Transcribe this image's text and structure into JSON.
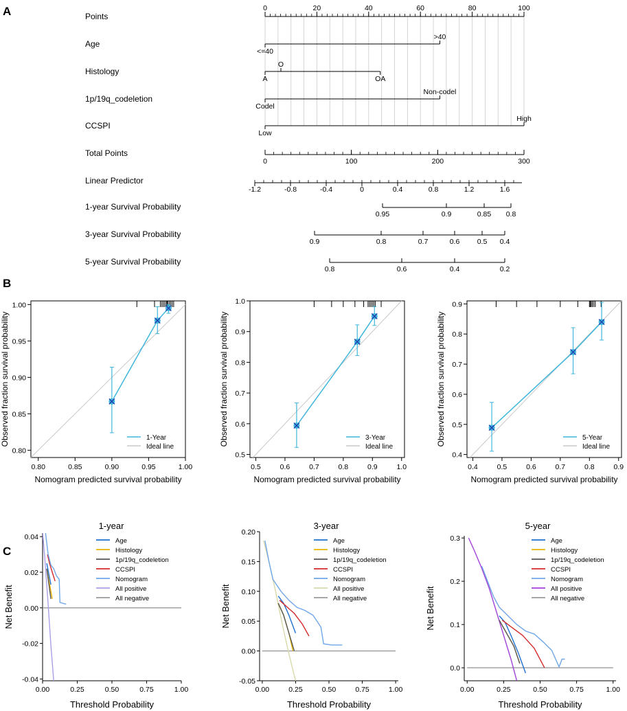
{
  "panels": {
    "a": "A",
    "b": "B",
    "c": "C"
  },
  "nomogram": {
    "rows": [
      {
        "label": "Points",
        "kind": "scale",
        "min": 0,
        "max": 100,
        "major": [
          0,
          20,
          40,
          60,
          80,
          100
        ]
      },
      {
        "label": "Age",
        "kind": "var",
        "from": 0,
        "to": 67.5,
        "levels": [
          {
            "text": "<=40",
            "at": 0,
            "pos": "below"
          },
          {
            "text": ">40",
            "at": 67.5,
            "pos": "above"
          }
        ]
      },
      {
        "label": "Histology",
        "kind": "var",
        "from": 0,
        "to": 44.5,
        "levels": [
          {
            "text": "A",
            "at": 0,
            "pos": "below"
          },
          {
            "text": "O",
            "at": 6.1,
            "pos": "above"
          },
          {
            "text": "OA",
            "at": 44.5,
            "pos": "below"
          }
        ]
      },
      {
        "label": "1p/19q_codeletion",
        "kind": "var",
        "from": 0,
        "to": 67.5,
        "levels": [
          {
            "text": "Codel",
            "at": 0,
            "pos": "below"
          },
          {
            "text": "Non-codel",
            "at": 67.5,
            "pos": "above"
          }
        ]
      },
      {
        "label": "CCSPI",
        "kind": "var",
        "from": 0,
        "to": 100,
        "levels": [
          {
            "text": "Low",
            "at": 0,
            "pos": "below"
          },
          {
            "text": "High",
            "at": 100,
            "pos": "above"
          }
        ]
      },
      {
        "label": "Total Points",
        "kind": "scale",
        "min": 0,
        "max": 300,
        "major": [
          0,
          100,
          200,
          300
        ]
      },
      {
        "label": "Linear Predictor",
        "kind": "lp",
        "ticks": [
          "-1.2",
          "-0.8",
          "-0.4",
          "0",
          "0.4",
          "0.8",
          "1.2",
          "1.6"
        ]
      },
      {
        "label": "1-year Survival Probability",
        "kind": "prob",
        "ticks": [
          "0.95",
          "0.9",
          "0.85",
          "0.8"
        ]
      },
      {
        "label": "3-year Survival Probability",
        "kind": "prob",
        "ticks": [
          "0.9",
          "0.8",
          "0.7",
          "0.6",
          "0.5",
          "0.4"
        ]
      },
      {
        "label": "5-year Survival Probability",
        "kind": "prob",
        "ticks": [
          "0.8",
          "0.6",
          "0.4",
          "0.2"
        ]
      }
    ]
  },
  "chart_data": [
    {
      "type": "line",
      "panel": "B1",
      "xlabel": "Nomogram predicted survival probability",
      "ylabel": "Observed fraction survival probability",
      "xlim": [
        0.79,
        1.0
      ],
      "ylim": [
        0.79,
        1.005
      ],
      "xticks": [
        "0.80",
        "0.85",
        "0.90",
        "0.95",
        "1.00"
      ],
      "yticks": [
        "0.80",
        "0.85",
        "0.90",
        "0.95",
        "1.00"
      ],
      "series": [
        {
          "name": "1-Year",
          "x": [
            0.9,
            0.962,
            0.977
          ],
          "y": [
            0.867,
            0.978,
            0.995
          ],
          "err_low": [
            0.824,
            0.96,
            0.988
          ],
          "err_high": [
            0.914,
            0.997,
            1.0
          ]
        }
      ],
      "rug": [
        0.934,
        0.958,
        0.966,
        0.968,
        0.97,
        0.972,
        0.974,
        0.975,
        0.976,
        0.978,
        0.98,
        0.982,
        0.984
      ],
      "legend": [
        "1-Year",
        "Ideal line"
      ]
    },
    {
      "type": "line",
      "panel": "B2",
      "xlabel": "Nomogram predicted survival probability",
      "ylabel": "Observed fraction survival probability",
      "xlim": [
        0.48,
        1.01
      ],
      "ylim": [
        0.49,
        1.0
      ],
      "xticks": [
        "0.5",
        "0.6",
        "0.7",
        "0.8",
        "0.9",
        "1.0"
      ],
      "yticks": [
        "0.5",
        "0.6",
        "0.7",
        "0.8",
        "0.9",
        "1.0"
      ],
      "series": [
        {
          "name": "3-Year",
          "x": [
            0.64,
            0.848,
            0.907
          ],
          "y": [
            0.594,
            0.867,
            0.95
          ],
          "err_low": [
            0.523,
            0.822,
            0.92
          ],
          "err_high": [
            0.668,
            0.922,
            0.982
          ]
        }
      ],
      "rug": [
        0.7,
        0.76,
        0.8,
        0.84,
        0.87,
        0.885,
        0.89,
        0.895,
        0.9,
        0.905,
        0.91,
        0.93
      ],
      "legend": [
        "3-Year",
        "Ideal line"
      ]
    },
    {
      "type": "line",
      "panel": "B3",
      "xlabel": "Nomogram predicted survival probability",
      "ylabel": "Observed fraction survival probability",
      "xlim": [
        0.38,
        0.91
      ],
      "ylim": [
        0.39,
        0.91
      ],
      "xticks": [
        "0.4",
        "0.5",
        "0.6",
        "0.7",
        "0.8",
        "0.9"
      ],
      "yticks": [
        "0.4",
        "0.5",
        "0.6",
        "0.7",
        "0.8",
        "0.9"
      ],
      "series": [
        {
          "name": "5-Year",
          "x": [
            0.465,
            0.744,
            0.842
          ],
          "y": [
            0.489,
            0.74,
            0.84
          ],
          "err_low": [
            0.411,
            0.668,
            0.78
          ],
          "err_high": [
            0.573,
            0.821,
            0.905
          ]
        }
      ],
      "rug": [
        0.48,
        0.55,
        0.62,
        0.7,
        0.76,
        0.8,
        0.803,
        0.806,
        0.81,
        0.815,
        0.82,
        0.84
      ],
      "legend": [
        "5-Year",
        "Ideal line"
      ]
    },
    {
      "type": "line",
      "panel": "C1",
      "title": "1-year",
      "xlabel": "Threshold Probability",
      "ylabel": "Net Benefit",
      "xlim": [
        0,
        1.0
      ],
      "ylim": [
        -0.041,
        0.042
      ],
      "xticks": [
        "0.00",
        "0.25",
        "0.50",
        "0.75",
        "1.00"
      ],
      "yticks": [
        "-0.04",
        "-0.02",
        "0.00",
        "0.02",
        "0.04"
      ],
      "legend": [
        "Age",
        "Histology",
        "1p/19q_codeletion",
        "CCSPI",
        "Nomogram",
        "All positive",
        "All negative"
      ],
      "series": [
        {
          "name": "Age",
          "color": "#1f6fd0",
          "x": [
            0.03,
            0.06
          ],
          "y": [
            0.025,
            0.013
          ]
        },
        {
          "name": "Histology",
          "color": "#e8b600",
          "x": [
            0.03,
            0.07
          ],
          "y": [
            0.022,
            0.005
          ]
        },
        {
          "name": "1p/19q_codeletion",
          "color": "#555555",
          "x": [
            0.03,
            0.06
          ],
          "y": [
            0.022,
            0.005
          ]
        },
        {
          "name": "CCSPI",
          "color": "#d42a2a",
          "x": [
            0.035,
            0.05,
            0.07,
            0.09
          ],
          "y": [
            0.03,
            0.025,
            0.02,
            0.015
          ]
        },
        {
          "name": "Nomogram",
          "color": "#6fa6e8",
          "x": [
            0.02,
            0.04,
            0.06,
            0.08,
            0.1,
            0.12,
            0.125,
            0.17
          ],
          "y": [
            0.043,
            0.03,
            0.024,
            0.022,
            0.018,
            0.016,
            0.003,
            0.002
          ]
        },
        {
          "name": "All positive",
          "color": "#a9a0e8",
          "x": [
            0.0,
            0.02,
            0.04,
            0.06,
            0.08
          ],
          "y": [
            0.043,
            0.024,
            0.002,
            -0.021,
            -0.041
          ]
        },
        {
          "name": "All negative",
          "color": "#9a9a9a",
          "x": [
            0.0,
            1.0
          ],
          "y": [
            0.0,
            0.0
          ]
        }
      ]
    },
    {
      "type": "line",
      "panel": "C2",
      "title": "3-year",
      "xlabel": "Threshold Probability",
      "ylabel": "Net Benefit",
      "xlim": [
        -0.02,
        1.02
      ],
      "ylim": [
        -0.05,
        0.2
      ],
      "xticks": [
        "0.00",
        "0.25",
        "0.50",
        "0.75",
        "1.00"
      ],
      "yticks": [
        "-0.05",
        "0.00",
        "0.05",
        "0.10",
        "0.15",
        "0.20"
      ],
      "legend": [
        "Age",
        "Histology",
        "1p/19q_codeletion",
        "CCSPI",
        "Nomogram",
        "All positive",
        "All negative"
      ],
      "series": [
        {
          "name": "Age",
          "color": "#1f6fd0",
          "x": [
            0.12,
            0.16,
            0.2,
            0.25
          ],
          "y": [
            0.092,
            0.08,
            0.06,
            0.03
          ]
        },
        {
          "name": "Histology",
          "color": "#e8b600",
          "x": [
            0.12,
            0.16,
            0.2,
            0.23
          ],
          "y": [
            0.08,
            0.06,
            0.03,
            0.0
          ]
        },
        {
          "name": "1p/19q_codeletion",
          "color": "#555555",
          "x": [
            0.12,
            0.16,
            0.2,
            0.24
          ],
          "y": [
            0.08,
            0.06,
            0.03,
            0.0
          ]
        },
        {
          "name": "CCSPI",
          "color": "#d42a2a",
          "x": [
            0.13,
            0.18,
            0.24,
            0.3,
            0.35
          ],
          "y": [
            0.085,
            0.075,
            0.063,
            0.045,
            0.025
          ]
        },
        {
          "name": "Nomogram",
          "color": "#6fa6e8",
          "x": [
            0.02,
            0.05,
            0.08,
            0.11,
            0.14,
            0.2,
            0.26,
            0.32,
            0.38,
            0.44,
            0.46,
            0.52,
            0.6
          ],
          "y": [
            0.185,
            0.15,
            0.12,
            0.11,
            0.1,
            0.085,
            0.073,
            0.068,
            0.06,
            0.04,
            0.012,
            0.01,
            0.01
          ]
        },
        {
          "name": "All positive",
          "color": "#d8d9a8",
          "x": [
            0.01,
            0.05,
            0.1,
            0.15,
            0.2,
            0.25
          ],
          "y": [
            0.185,
            0.15,
            0.1,
            0.045,
            -0.005,
            -0.05
          ]
        },
        {
          "name": "All negative",
          "color": "#9a9a9a",
          "x": [
            0.0,
            1.0
          ],
          "y": [
            0.0,
            0.0
          ]
        }
      ]
    },
    {
      "type": "line",
      "panel": "C3",
      "title": "5-year",
      "xlabel": "Threshold Probability",
      "ylabel": "Net Benefit",
      "xlim": [
        -0.02,
        1.02
      ],
      "ylim": [
        -0.03,
        0.305
      ],
      "xticks": [
        "0.00",
        "0.25",
        "0.50",
        "0.75",
        "1.00"
      ],
      "yticks": [
        "0.0",
        "0.1",
        "0.2",
        "0.3"
      ],
      "legend": [
        "Age",
        "Histology",
        "1p/19q_codeletion",
        "CCSPI",
        "Nomogram",
        "All positive",
        "All negative"
      ],
      "series": [
        {
          "name": "Age",
          "color": "#1f6fd0",
          "x": [
            0.22,
            0.26,
            0.3,
            0.35,
            0.4
          ],
          "y": [
            0.12,
            0.105,
            0.075,
            0.035,
            -0.012
          ]
        },
        {
          "name": "Histology",
          "color": "#e8b600",
          "x": [
            0.22,
            0.27,
            0.32,
            0.36
          ],
          "y": [
            0.11,
            0.08,
            0.05,
            0.01
          ]
        },
        {
          "name": "1p/19q_codeletion",
          "color": "#555555",
          "x": [
            0.22,
            0.27,
            0.32,
            0.36
          ],
          "y": [
            0.11,
            0.08,
            0.05,
            0.01
          ]
        },
        {
          "name": "CCSPI",
          "color": "#d42a2a",
          "x": [
            0.24,
            0.3,
            0.38,
            0.46,
            0.53
          ],
          "y": [
            0.11,
            0.095,
            0.075,
            0.045,
            0.0
          ]
        },
        {
          "name": "Nomogram",
          "color": "#6fa6e8",
          "x": [
            0.1,
            0.14,
            0.18,
            0.22,
            0.28,
            0.34,
            0.4,
            0.46,
            0.52,
            0.58,
            0.63,
            0.65,
            0.67
          ],
          "y": [
            0.235,
            0.2,
            0.165,
            0.14,
            0.12,
            0.1,
            0.085,
            0.078,
            0.06,
            0.04,
            0.002,
            0.02,
            0.02
          ]
        },
        {
          "name": "All positive",
          "color": "#a040d8",
          "x": [
            0.01,
            0.05,
            0.1,
            0.15,
            0.2,
            0.25,
            0.3,
            0.34
          ],
          "y": [
            0.3,
            0.27,
            0.23,
            0.185,
            0.13,
            0.075,
            0.02,
            -0.03
          ]
        },
        {
          "name": "All negative",
          "color": "#9a9a9a",
          "x": [
            0.0,
            1.0
          ],
          "y": [
            0.0,
            0.0
          ]
        }
      ]
    }
  ]
}
